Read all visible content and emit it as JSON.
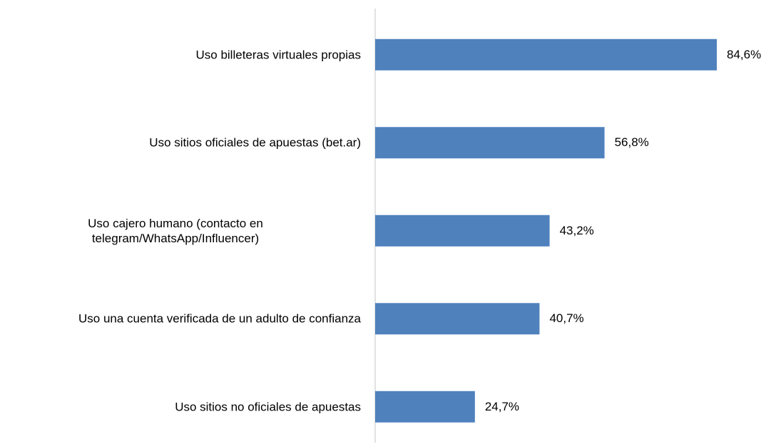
{
  "chart_data": {
    "type": "bar",
    "orientation": "horizontal",
    "categories": [
      "Uso billeteras virtuales propias",
      "Uso sitios oficiales de apuestas (bet.ar)",
      "Uso cajero humano (contacto en\ntelegram/WhatsApp/Influencer)",
      "Uso una cuenta verificada de un adulto de confianza",
      "Uso sitios no oficiales de apuestas"
    ],
    "values": [
      84.6,
      56.8,
      43.2,
      40.7,
      24.7
    ],
    "value_labels": [
      "84,6%",
      "56,8%",
      "43,2%",
      "40,7%",
      "24,7%"
    ],
    "color": "#4f81bd"
  }
}
